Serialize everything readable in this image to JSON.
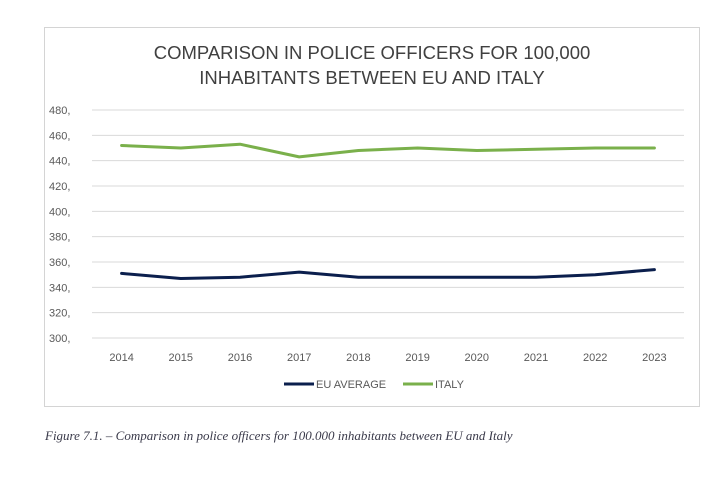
{
  "chart_data": {
    "type": "line",
    "title_lines": [
      "COMPARISON IN POLICE OFFICERS FOR 100,000",
      "INHABITANTS BETWEEN EU AND ITALY"
    ],
    "categories": [
      "2014",
      "2015",
      "2016",
      "2017",
      "2018",
      "2019",
      "2020",
      "2021",
      "2022",
      "2023"
    ],
    "series": [
      {
        "name": "EU AVERAGE",
        "color": "#0b1f4d",
        "values": [
          351,
          347,
          348,
          352,
          348,
          348,
          348,
          348,
          350,
          354
        ]
      },
      {
        "name": "ITALY",
        "color": "#7ab04b",
        "values": [
          452,
          450,
          453,
          443,
          448,
          450,
          448,
          449,
          450,
          450
        ]
      }
    ],
    "y_ticks": [
      "300,",
      "320,",
      "340,",
      "360,",
      "380,",
      "400,",
      "420,",
      "440,",
      "460,",
      "480,"
    ],
    "ylim": [
      300,
      480
    ],
    "y_step": 20,
    "grid": true,
    "legend_position": "bottom",
    "xlabel": "",
    "ylabel": ""
  },
  "caption": "Figure 7.1. – Comparison in police officers for 100.000 inhabitants between EU and Italy"
}
